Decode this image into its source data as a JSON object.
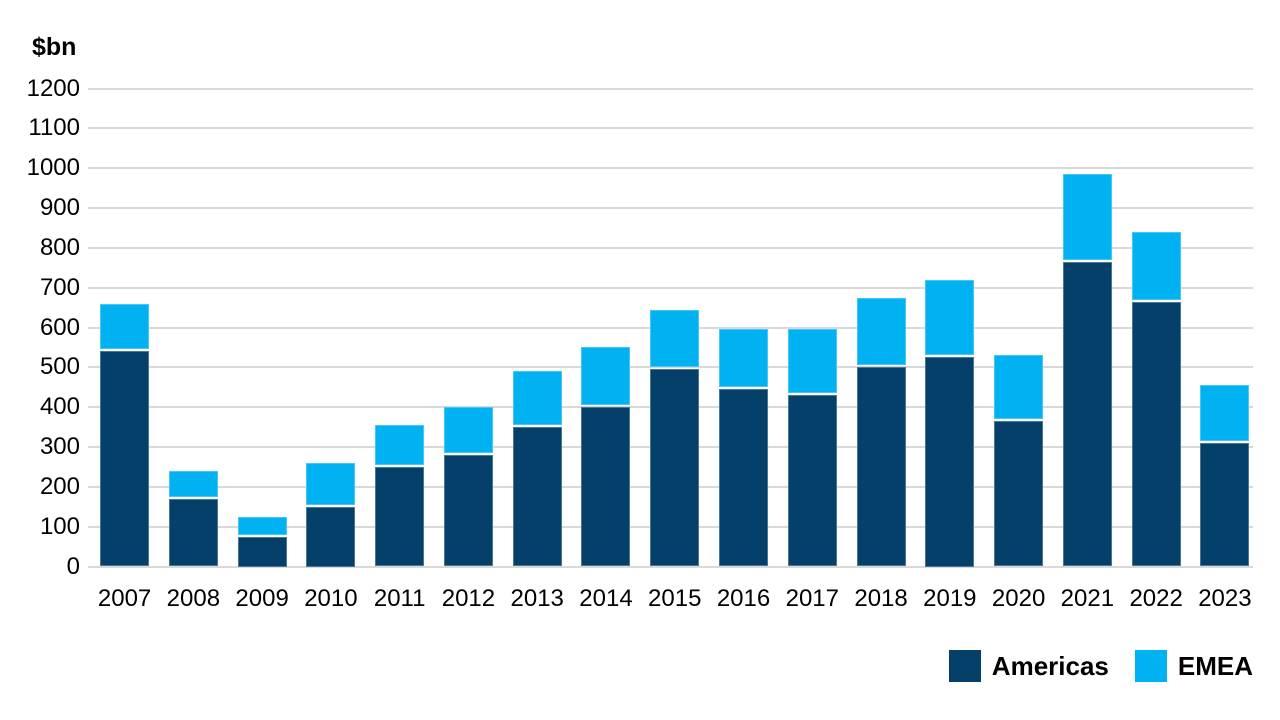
{
  "chart_data": {
    "type": "bar",
    "stacked": true,
    "title": "",
    "unit_label": "$bn",
    "xlabel": "",
    "ylabel": "$bn",
    "categories": [
      "2007",
      "2008",
      "2009",
      "2010",
      "2011",
      "2012",
      "2013",
      "2014",
      "2015",
      "2016",
      "2017",
      "2018",
      "2019",
      "2020",
      "2021",
      "2022",
      "2023"
    ],
    "series": [
      {
        "name": "Americas",
        "color": "#05406B",
        "values": [
          540,
          170,
          75,
          150,
          250,
          280,
          350,
          400,
          495,
          445,
          430,
          500,
          525,
          365,
          765,
          665,
          310
        ]
      },
      {
        "name": "EMEA",
        "color": "#00B2F1",
        "values": [
          120,
          70,
          50,
          110,
          105,
          120,
          140,
          150,
          150,
          150,
          165,
          175,
          195,
          165,
          220,
          175,
          145
        ]
      }
    ],
    "ylim": [
      0,
      1200
    ],
    "yticks": [
      0,
      100,
      200,
      300,
      400,
      500,
      600,
      700,
      800,
      900,
      1000,
      1100,
      1200
    ],
    "grid": true,
    "gridline_color": "#D9D9D9",
    "background_color": "#FFFFFF",
    "text_color": "#000000",
    "legend_position": "bottom-right"
  }
}
